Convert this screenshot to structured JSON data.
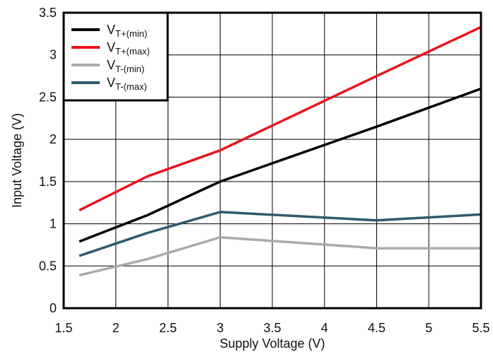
{
  "chart_data": {
    "type": "line",
    "title": "",
    "xlabel": "Supply Voltage (V)",
    "ylabel": "Input Voltage (V)",
    "xlim": [
      1.5,
      5.5
    ],
    "ylim": [
      0,
      3.5
    ],
    "xticks": [
      1.5,
      2,
      2.5,
      3,
      3.5,
      4,
      4.5,
      5,
      5.5
    ],
    "xtick_labels": [
      "1.5",
      "2",
      "2.5",
      "3",
      "3.5",
      "4",
      "4.5",
      "5",
      "5.5"
    ],
    "yticks": [
      0,
      0.5,
      1,
      1.5,
      2,
      2.5,
      3,
      3.5
    ],
    "ytick_labels": [
      "0",
      "0.5",
      "1",
      "1.5",
      "2",
      "2.5",
      "3",
      "3.5"
    ],
    "grid": true,
    "legend_position": "top-left",
    "series": [
      {
        "name": "VT+(min)",
        "label_main": "V",
        "label_sub": "T+(min)",
        "color": "#000000",
        "x": [
          1.65,
          2.3,
          3,
          4.5,
          5.5
        ],
        "y": [
          0.79,
          1.1,
          1.5,
          2.15,
          2.6
        ]
      },
      {
        "name": "VT+(max)",
        "label_main": "V",
        "label_sub": "T+(max)",
        "color": "#e8141c",
        "x": [
          1.65,
          2.3,
          3,
          4.5,
          5.5
        ],
        "y": [
          1.16,
          1.56,
          1.87,
          2.75,
          3.33
        ]
      },
      {
        "name": "VT-(min)",
        "label_main": "V",
        "label_sub": "T-(min)",
        "color": "#aaaaaa",
        "x": [
          1.65,
          2.3,
          3,
          4.5,
          5.5
        ],
        "y": [
          0.39,
          0.58,
          0.84,
          0.71,
          0.71
        ]
      },
      {
        "name": "VT-(max)",
        "label_main": "V",
        "label_sub": "T-(max)",
        "color": "#2e5a6e",
        "x": [
          1.65,
          2.3,
          3,
          4.5,
          5.5
        ],
        "y": [
          0.62,
          0.89,
          1.14,
          1.04,
          1.11
        ]
      }
    ]
  }
}
